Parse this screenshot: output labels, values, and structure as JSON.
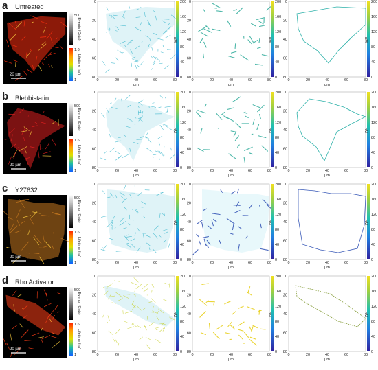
{
  "scale_bar": "20 µm",
  "colorbar": {
    "events_label": "Events (Cnts)",
    "events_max": "500",
    "events_mid": "",
    "lifetime_label": "Lifetime (ns)",
    "lifetime_top": "1.6",
    "lifetime_bottom": "1"
  },
  "plot_axes": {
    "xlabel": "µm",
    "ticks": [
      "0",
      "20",
      "40",
      "60",
      "80"
    ],
    "cbar_label": "nM",
    "cbar_ticks": [
      "0",
      "40",
      "80",
      "120",
      "160",
      "200"
    ]
  },
  "colors": {
    "untreated": "#ff3010",
    "blebbistatin": "#e02020",
    "y27632": "#c87a20",
    "rho": "#ff4018",
    "fiber_teal": "#2ab0c8",
    "fiber_yellow": "#e8d020",
    "fiber_blue": "#3a5ab8"
  },
  "panels": [
    {
      "letter": "a",
      "title": "Untreated"
    },
    {
      "letter": "b",
      "title": "Blebbistatin"
    },
    {
      "letter": "c",
      "title": "Y27632"
    },
    {
      "letter": "d",
      "title": "Rho Activator"
    }
  ]
}
